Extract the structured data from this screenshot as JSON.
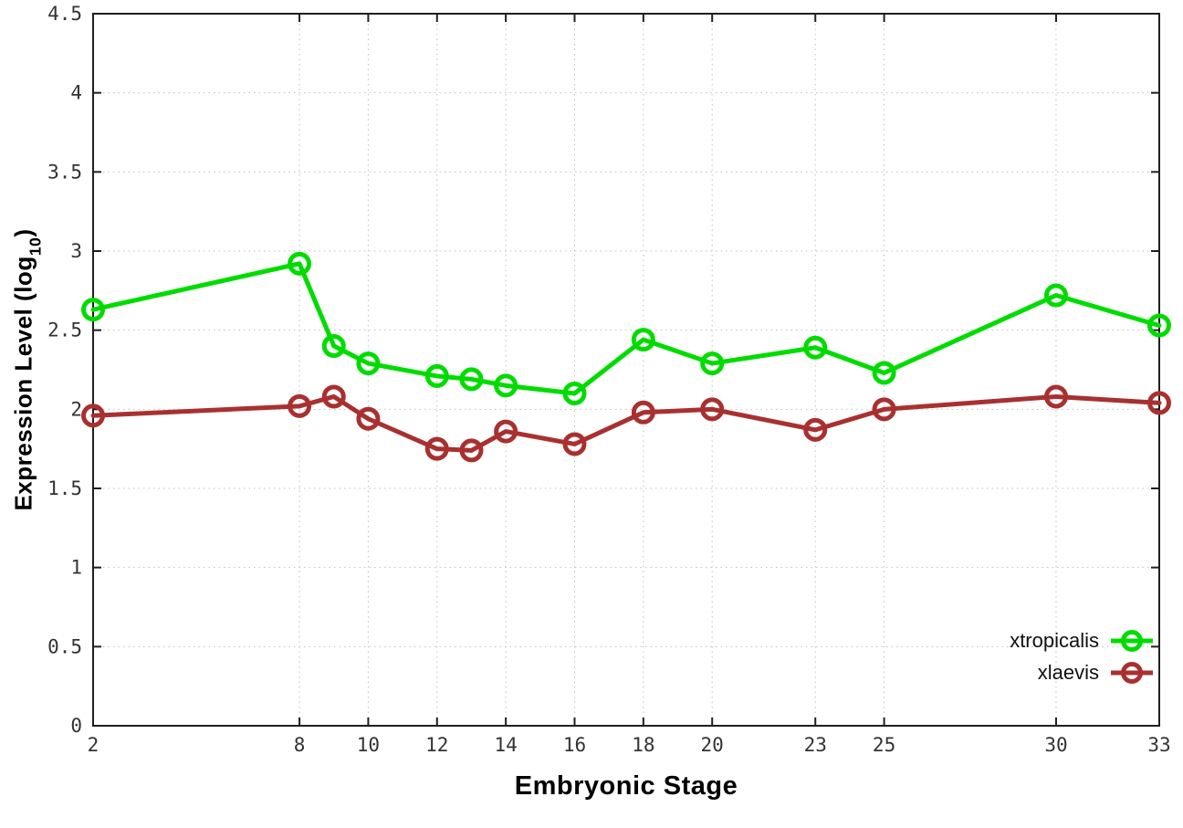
{
  "chart_data": {
    "type": "line",
    "title": "",
    "xlabel": "Embryonic Stage",
    "ylabel_prefix": "Expression Level (log",
    "ylabel_sub": "10",
    "ylabel_suffix": ")",
    "xlim": [
      2,
      33
    ],
    "ylim": [
      0,
      4.5
    ],
    "x": [
      2,
      8,
      9,
      10,
      12,
      13,
      14,
      16,
      18,
      20,
      23,
      25,
      30,
      33
    ],
    "x_ticks": [
      2,
      8,
      10,
      12,
      14,
      16,
      18,
      20,
      23,
      25,
      30,
      33
    ],
    "y_ticks": [
      0,
      0.5,
      1,
      1.5,
      2,
      2.5,
      3,
      3.5,
      4,
      4.5
    ],
    "grid": true,
    "legend_position": "bottom-right",
    "marker": "open-circle",
    "series": [
      {
        "name": "xtropicalis",
        "color": "#00dc00",
        "values": [
          2.63,
          2.92,
          2.4,
          2.29,
          2.21,
          2.19,
          2.15,
          2.1,
          2.44,
          2.29,
          2.39,
          2.23,
          2.72,
          2.53
        ]
      },
      {
        "name": "xlaevis",
        "color": "#a93030",
        "values": [
          1.96,
          2.02,
          2.08,
          1.94,
          1.75,
          1.74,
          1.86,
          1.78,
          1.98,
          2.0,
          1.87,
          2.0,
          2.08,
          2.04
        ]
      }
    ],
    "colors": {
      "border": "#1f1f1f",
      "grid": "#c0c0c0",
      "tick_text": "#333333"
    }
  }
}
